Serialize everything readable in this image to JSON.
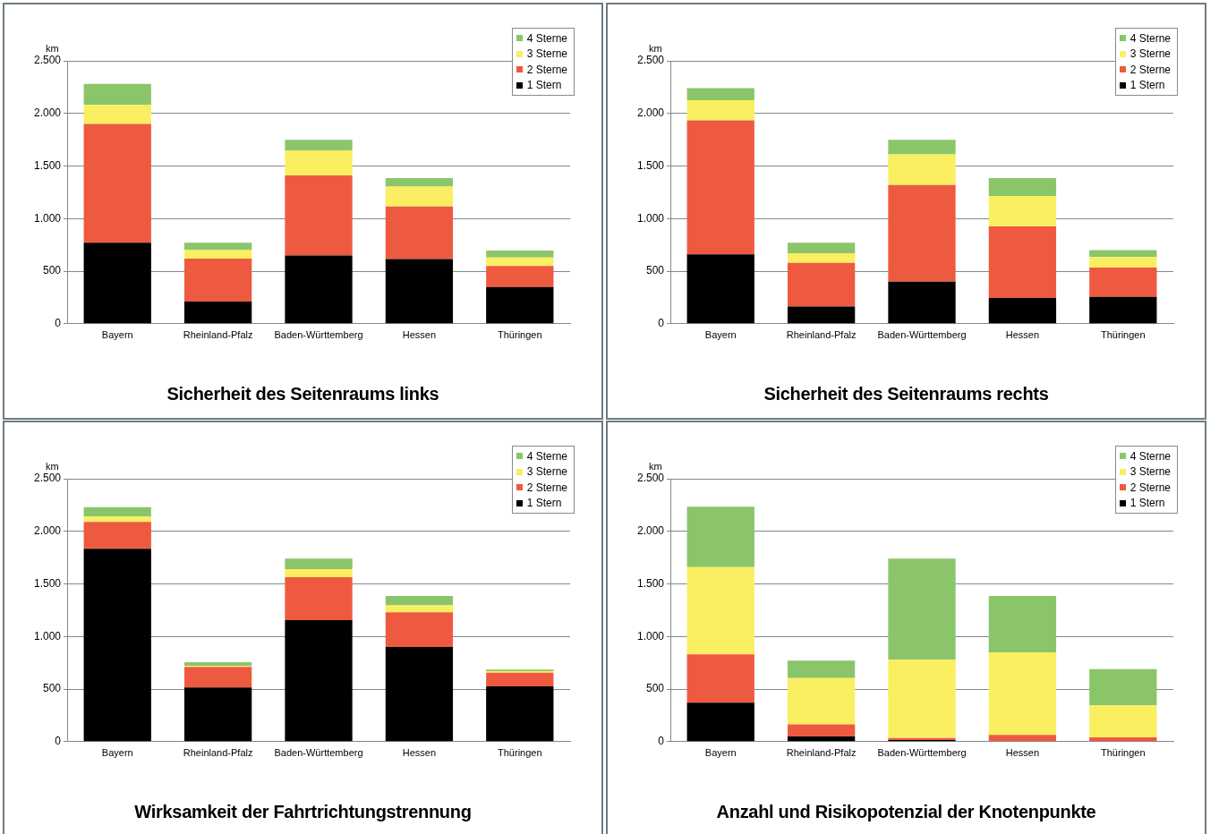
{
  "chart_data": [
    {
      "type": "bar",
      "title": "Sicherheit des Seitenraums links",
      "ylabel": "km",
      "categories": [
        "Bayern",
        "Rheinland-Pfalz",
        "Baden-Württemberg",
        "Hessen",
        "Thüringen"
      ],
      "stacked": true,
      "grid": "y",
      "legend": "top right",
      "ylim": [
        0,
        2500
      ],
      "yticks": [
        {
          "value": 0,
          "label": "0"
        },
        {
          "value": 500,
          "label": "500"
        },
        {
          "value": 1000,
          "label": "1.000"
        },
        {
          "value": 1500,
          "label": "1.500"
        },
        {
          "value": 2000,
          "label": "2.000"
        },
        {
          "value": 2500,
          "label": "2.500"
        }
      ],
      "series": [
        {
          "name": "1 Stern",
          "color": "#000000",
          "values": [
            770,
            210,
            650,
            615,
            350
          ]
        },
        {
          "name": "2 Sterne",
          "color": "#ee5a40",
          "values": [
            1130,
            410,
            760,
            500,
            200
          ]
        },
        {
          "name": "3 Sterne",
          "color": "#f9ef60",
          "values": [
            180,
            80,
            240,
            190,
            80
          ]
        },
        {
          "name": "4 Sterne",
          "color": "#8bc56a",
          "values": [
            200,
            70,
            100,
            80,
            65
          ]
        }
      ]
    },
    {
      "type": "bar",
      "title": "Sicherheit des Seitenraums rechts",
      "ylabel": "km",
      "categories": [
        "Bayern",
        "Rheinland-Pfalz",
        "Baden-Württemberg",
        "Hessen",
        "Thüringen"
      ],
      "stacked": true,
      "grid": "y",
      "legend": "top right",
      "ylim": [
        0,
        2500
      ],
      "yticks": [
        {
          "value": 0,
          "label": "0"
        },
        {
          "value": 500,
          "label": "500"
        },
        {
          "value": 1000,
          "label": "1.000"
        },
        {
          "value": 1500,
          "label": "1.500"
        },
        {
          "value": 2000,
          "label": "2.000"
        },
        {
          "value": 2500,
          "label": "2.500"
        }
      ],
      "series": [
        {
          "name": "1 Stern",
          "color": "#000000",
          "values": [
            660,
            165,
            400,
            245,
            255
          ]
        },
        {
          "name": "2 Sterne",
          "color": "#ee5a40",
          "values": [
            1275,
            415,
            920,
            680,
            280
          ]
        },
        {
          "name": "3 Sterne",
          "color": "#f9ef60",
          "values": [
            190,
            90,
            290,
            290,
            100
          ]
        },
        {
          "name": "4 Sterne",
          "color": "#8bc56a",
          "values": [
            115,
            100,
            140,
            170,
            65
          ]
        }
      ]
    },
    {
      "type": "bar",
      "title": "Wirksamkeit der Fahrtrichtungstrennung",
      "ylabel": "km",
      "categories": [
        "Bayern",
        "Rheinland-Pfalz",
        "Baden-Württemberg",
        "Hessen",
        "Thüringen"
      ],
      "stacked": true,
      "grid": "y",
      "legend": "top right",
      "ylim": [
        0,
        2500
      ],
      "yticks": [
        {
          "value": 0,
          "label": "0"
        },
        {
          "value": 500,
          "label": "500"
        },
        {
          "value": 1000,
          "label": "1.000"
        },
        {
          "value": 1500,
          "label": "1.500"
        },
        {
          "value": 2000,
          "label": "2.000"
        },
        {
          "value": 2500,
          "label": "2.500"
        }
      ],
      "series": [
        {
          "name": "1 Stern",
          "color": "#000000",
          "values": [
            1835,
            515,
            1155,
            900,
            525
          ]
        },
        {
          "name": "2 Sterne",
          "color": "#ee5a40",
          "values": [
            255,
            195,
            410,
            330,
            130
          ]
        },
        {
          "name": "3 Sterne",
          "color": "#f9ef60",
          "values": [
            50,
            10,
            75,
            65,
            15
          ]
        },
        {
          "name": "4 Sterne",
          "color": "#8bc56a",
          "values": [
            90,
            35,
            100,
            90,
            15
          ]
        }
      ]
    },
    {
      "type": "bar",
      "title": "Anzahl und Risikopotenzial der Knotenpunkte",
      "ylabel": "km",
      "categories": [
        "Bayern",
        "Rheinland-Pfalz",
        "Baden-Württemberg",
        "Hessen",
        "Thüringen"
      ],
      "stacked": true,
      "grid": "y",
      "legend": "top right",
      "ylim": [
        0,
        2500
      ],
      "yticks": [
        {
          "value": 0,
          "label": "0"
        },
        {
          "value": 500,
          "label": "500"
        },
        {
          "value": 1000,
          "label": "1.000"
        },
        {
          "value": 1500,
          "label": "1.500"
        },
        {
          "value": 2000,
          "label": "2.000"
        },
        {
          "value": 2500,
          "label": "2.500"
        }
      ],
      "series": [
        {
          "name": "1 Stern",
          "color": "#000000",
          "values": [
            370,
            50,
            15,
            0,
            0
          ]
        },
        {
          "name": "2 Sterne",
          "color": "#ee5a40",
          "values": [
            460,
            115,
            20,
            65,
            40
          ]
        },
        {
          "name": "3 Sterne",
          "color": "#f9ef60",
          "values": [
            830,
            440,
            745,
            785,
            305
          ]
        },
        {
          "name": "4 Sterne",
          "color": "#8bc56a",
          "values": [
            575,
            165,
            960,
            535,
            345
          ]
        }
      ]
    }
  ]
}
